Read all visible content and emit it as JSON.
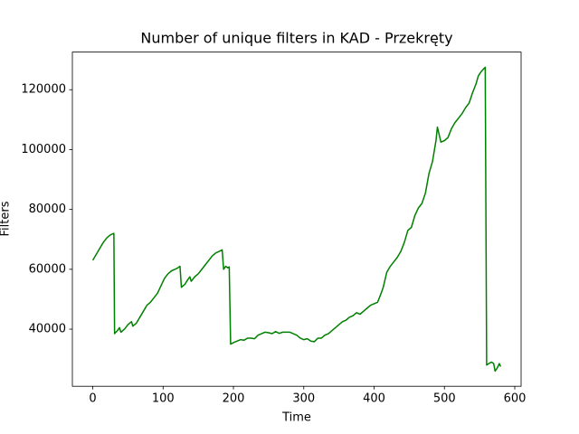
{
  "chart_data": {
    "type": "line",
    "title": "Number of unique filters in KAD - Przekręty",
    "x_label": "Time",
    "y_label": "Filters",
    "x": [
      0,
      5,
      10,
      15,
      20,
      25,
      30,
      31,
      35,
      38,
      40,
      45,
      50,
      55,
      57,
      62,
      67,
      72,
      77,
      82,
      87,
      92,
      97,
      102,
      107,
      112,
      117,
      121,
      124,
      126,
      131,
      135,
      138,
      140,
      145,
      150,
      155,
      160,
      165,
      170,
      175,
      180,
      184,
      186,
      189,
      192,
      194,
      196,
      200,
      205,
      210,
      215,
      220,
      225,
      230,
      235,
      240,
      245,
      250,
      255,
      260,
      265,
      270,
      275,
      280,
      285,
      290,
      295,
      300,
      305,
      310,
      315,
      320,
      325,
      330,
      335,
      340,
      345,
      350,
      355,
      360,
      365,
      370,
      375,
      380,
      385,
      390,
      395,
      400,
      405,
      410,
      413,
      418,
      423,
      428,
      433,
      438,
      443,
      448,
      453,
      458,
      463,
      468,
      473,
      478,
      483,
      488,
      490,
      495,
      500,
      505,
      510,
      515,
      520,
      525,
      530,
      535,
      540,
      545,
      548,
      552,
      558,
      560,
      563,
      567,
      570,
      572,
      575,
      578,
      580
    ],
    "series": [
      {
        "name": "Filters",
        "color": "#008000",
        "values": [
          63000,
          65000,
          67000,
          69000,
          70500,
          71500,
          72000,
          38500,
          39500,
          40500,
          39000,
          40000,
          41500,
          42500,
          41000,
          42000,
          44000,
          46000,
          48000,
          49000,
          50500,
          52000,
          54500,
          57000,
          58500,
          59500,
          60000,
          60500,
          61000,
          54000,
          55000,
          56500,
          57500,
          56000,
          57500,
          58500,
          60000,
          61500,
          63000,
          64500,
          65500,
          66000,
          66500,
          60000,
          61000,
          60500,
          60800,
          35000,
          35500,
          36000,
          36500,
          36300,
          37000,
          37000,
          36800,
          38000,
          38500,
          39000,
          38800,
          38500,
          39200,
          38600,
          39000,
          39000,
          39000,
          38500,
          38000,
          37000,
          36500,
          36800,
          36000,
          35800,
          37000,
          37000,
          38000,
          38500,
          39500,
          40500,
          41500,
          42500,
          43000,
          44000,
          44500,
          45500,
          45000,
          46000,
          47000,
          48000,
          48500,
          49000,
          52000,
          54000,
          59000,
          61000,
          62500,
          64000,
          66000,
          69000,
          73000,
          74000,
          78000,
          80500,
          82000,
          85500,
          92000,
          96000,
          103000,
          107500,
          102500,
          103000,
          104000,
          107000,
          109000,
          110500,
          112000,
          114000,
          115500,
          119000,
          122000,
          124500,
          126000,
          127500,
          28000,
          28500,
          29000,
          28500,
          26000,
          27000,
          28500,
          27500
        ]
      }
    ],
    "xlim": [
      -29,
      609
    ],
    "ylim": [
      20925,
      132575
    ],
    "xticks": [
      0,
      100,
      200,
      300,
      400,
      500,
      600
    ],
    "yticks": [
      40000,
      60000,
      80000,
      100000,
      120000
    ]
  }
}
